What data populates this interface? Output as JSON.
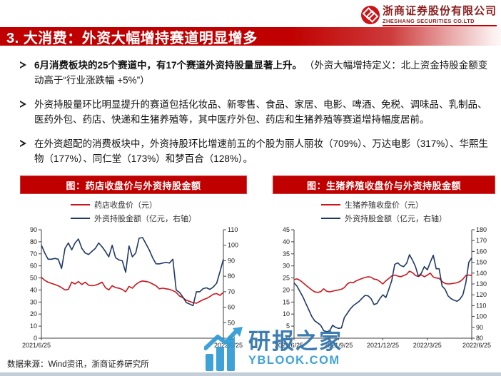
{
  "header": {
    "logo": {
      "company_cn": "浙商证券股份有限公司",
      "company_en": "ZHESHANG SECURITIES CO.LTD"
    },
    "title": "3. 大消费：外资大幅增持赛道明显增多"
  },
  "bullets": [
    {
      "bold": "6月消费板块的25个赛道中，有17个赛道外资持股量显著上升。",
      "normal": "  （外资大幅增持定义：北上资金持股金额变动高于“行业涨跌幅 +5%”）"
    },
    {
      "bold": "",
      "normal": "外资持股量环比明显提升的赛道包括化妆品、新零售、食品、家居、电影、啤酒、免税、调味品、乳制品、医药外包、药店、快递和生猪养殖等，其中医疗外包、药店和生猪养殖等赛道增持幅度居前。"
    },
    {
      "bold": "",
      "normal": "在外资超配的消费板块中，外资持股环比增速前五的个股为丽人丽妆（709%）、万达电影（317%）、华熙生物（177%）、同仁堂（173%）和梦百合（128%）。"
    }
  ],
  "chart_data": [
    {
      "type": "line",
      "title": "图：药店收盘价与外资持股金额",
      "x_labels": [
        "2021/6/25",
        "2022/6/25"
      ],
      "left_axis": {
        "min": 0,
        "max": 90,
        "step": 10,
        "ticks": [
          0,
          10,
          20,
          30,
          40,
          50,
          60,
          70,
          80,
          90
        ]
      },
      "right_axis": {
        "min": 40,
        "max": 110,
        "step": 10,
        "ticks": [
          40,
          50,
          60,
          70,
          80,
          90,
          100,
          110
        ]
      },
      "legend_position": "top",
      "grid": false,
      "series": [
        {
          "name": "药店收盘价（元）",
          "axis": "left",
          "color": "#c9161d",
          "values": [
            50.5,
            48,
            46.5,
            45.5,
            44.5,
            43.5,
            42,
            40,
            40.5,
            46.5,
            45,
            47,
            44.5,
            46.5,
            44,
            43.5,
            44,
            45,
            46.5,
            42,
            40,
            43.5,
            42,
            41.5,
            40.5,
            38.5,
            43,
            41.5,
            44.5,
            46.5,
            47.5,
            47,
            46.5,
            45,
            43.5,
            41,
            41.5,
            41,
            40.5,
            39.5,
            38,
            35,
            33.5,
            31.5,
            30.5,
            29.5,
            29,
            30.5,
            32,
            33,
            34.5,
            36.5,
            37,
            35.5,
            38
          ]
        },
        {
          "name": "外资持股金额（亿元，右轴）",
          "axis": "right",
          "color": "#1f3864",
          "values": [
            100,
            95,
            91,
            91,
            91.5,
            91,
            85,
            98,
            101.5,
            97,
            101.5,
            104,
            98,
            95,
            94,
            96,
            98,
            101.5,
            99,
            96,
            92.5,
            100,
            92,
            90.5,
            90,
            82.5,
            99.5,
            92.5,
            95,
            104.5,
            105,
            101,
            97,
            92,
            88,
            88,
            88.5,
            89,
            88.5,
            91,
            71,
            69.5,
            66.5,
            63,
            62,
            61,
            70,
            70,
            72,
            72.5,
            71.5,
            73,
            75.5,
            83,
            91
          ]
        }
      ]
    },
    {
      "type": "line",
      "title": "图：生猪养殖收盘价与外资持股金额",
      "x_labels": [
        "2021/6/25",
        "2021/9/25",
        "2021/12/25",
        "2022/3/25",
        "2022/6/25"
      ],
      "left_axis": {
        "min": 0,
        "max": 45,
        "step": 5,
        "ticks": [
          0,
          5,
          10,
          15,
          20,
          25,
          30,
          35,
          40,
          45
        ]
      },
      "right_axis": {
        "min": 80,
        "max": 180,
        "step": 10,
        "ticks": [
          80,
          90,
          100,
          110,
          120,
          130,
          140,
          150,
          160,
          170,
          180
        ]
      },
      "legend_position": "top",
      "grid": false,
      "series": [
        {
          "name": "生猪养殖收盘价（元）",
          "axis": "left",
          "color": "#c9161d",
          "values": [
            24.3,
            24.6,
            24,
            23,
            22,
            21,
            20,
            19.2,
            19,
            19.3,
            20.5,
            19.5,
            19.2,
            19.5,
            19.8,
            20,
            20.3,
            21,
            22.5,
            23.2,
            23,
            23.8,
            24.3,
            24.8,
            25.2,
            25.5,
            25.3,
            24.5,
            24.3,
            23.5,
            22.5,
            23.8,
            24.8,
            25.8,
            26.2,
            25.8,
            25.5,
            26,
            26.5,
            27.8,
            27.2,
            26,
            25.6,
            26.3,
            25.5,
            26.2,
            27,
            25.4,
            25,
            24.8,
            23.5,
            22.7,
            22.5,
            22.6,
            22.8,
            23,
            23.5,
            24.5,
            26,
            26.2,
            26
          ]
        },
        {
          "name": "外资持股金额（亿元，右轴）",
          "axis": "right",
          "color": "#1f3864",
          "values": [
            131,
            128,
            123,
            118,
            112,
            106,
            100,
            96,
            94,
            92,
            87,
            86,
            86.5,
            92,
            90,
            89,
            89.5,
            99,
            103,
            107,
            110,
            112,
            114,
            117,
            119.5,
            119,
            116.5,
            111,
            112,
            116.5,
            120,
            117.5,
            125,
            133,
            148,
            149.5,
            147,
            146,
            149,
            157,
            152,
            146,
            137,
            140,
            146,
            143,
            150,
            156.5,
            144,
            144,
            128,
            125,
            119,
            116.5,
            115,
            114,
            116,
            120,
            131,
            150,
            154
          ]
        }
      ]
    }
  ],
  "footer": {
    "source": "数据来源：Wind资讯，浙商证券研究所"
  },
  "watermark": {
    "name": "研报之家",
    "site": "YBLOOK.COM"
  },
  "colors": {
    "accent_red": "#c00000",
    "line_red": "#c9161d",
    "line_blue": "#1f3864",
    "watermark_blue": "#2e9bd6",
    "watermark_dark_blue": "#2d72ab",
    "logo_maroon": "#8b1d1d"
  }
}
